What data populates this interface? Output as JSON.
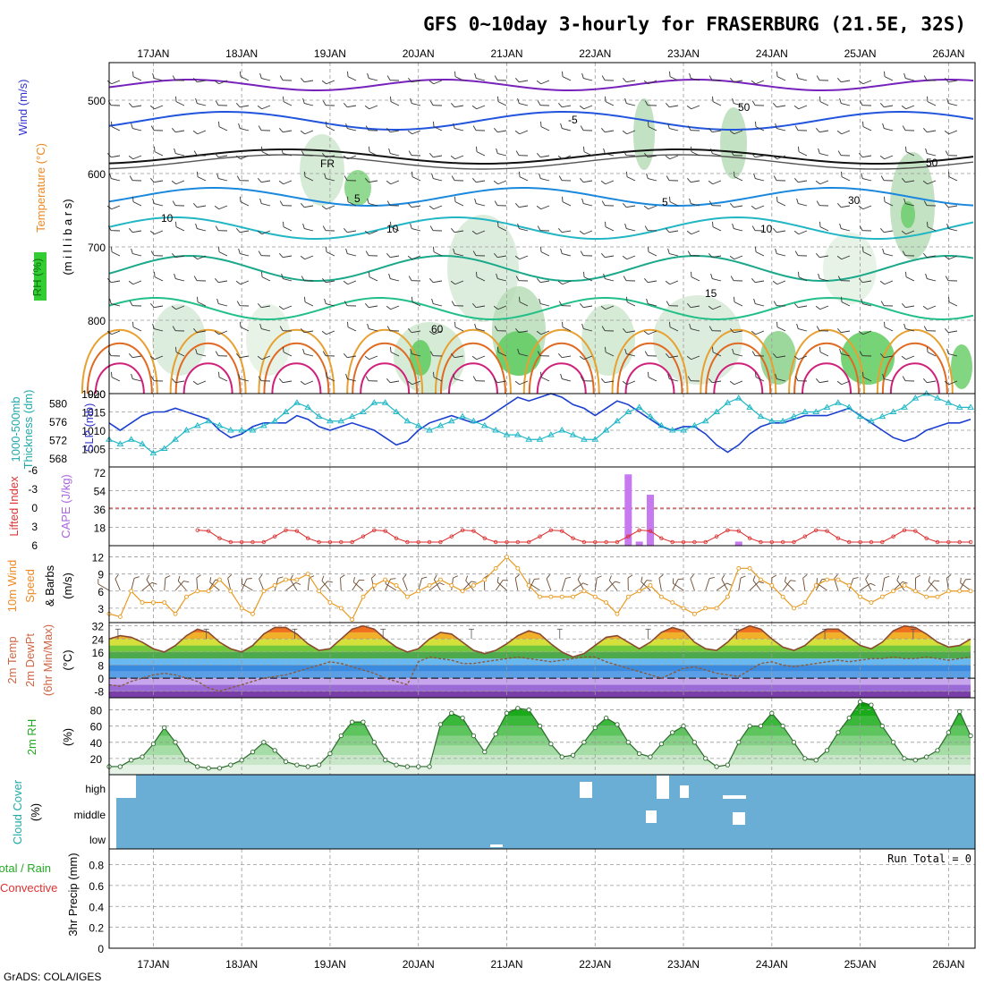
{
  "title": "GFS 0~10day 3-hourly for FRASERBURG (21.5E, 32S)",
  "footer": "GrADS: COLA/IGES",
  "run_total": "Run Total = 0",
  "x_axis": {
    "dates": [
      "17JAN",
      "18JAN",
      "19JAN",
      "20JAN",
      "21JAN",
      "22JAN",
      "23JAN",
      "24JAN",
      "25JAN",
      "26JAN"
    ],
    "start_day": 16.5,
    "end_day": 26.3
  },
  "panels": {
    "upper_air": {
      "labels": [
        "Wind (m/s)",
        "Temperature (°C)",
        "RH (%)",
        "(m i l l i b a r s)"
      ],
      "pressure_ticks": [
        "500",
        "600",
        "700",
        "800",
        "900"
      ],
      "contour_labels": [
        "-5",
        "FR",
        "5",
        "10",
        "15",
        "10",
        "10",
        "5",
        "50",
        "50",
        "30",
        "60"
      ]
    },
    "slp": {
      "labels": [
        "1000-500mb",
        "Thickness (dm)",
        "SLP (mb)"
      ],
      "thickness_ticks": [
        "580",
        "576",
        "572",
        "568"
      ],
      "slp_ticks": [
        "1020",
        "1015",
        "1010",
        "1005"
      ]
    },
    "cape": {
      "labels": [
        "Lifted Index",
        "CAPE (J/kg)"
      ],
      "li_ticks": [
        "-6",
        "-3",
        "0",
        "3",
        "6"
      ],
      "cape_ticks": [
        "72",
        "54",
        "36",
        "18"
      ]
    },
    "wind10m": {
      "labels": [
        "10m Wind",
        "Speed",
        "(m/s)",
        "& Barbs"
      ],
      "ticks": [
        "12",
        "9",
        "6",
        "3"
      ]
    },
    "temp2m": {
      "labels": [
        "2m Temp",
        "2m DewPt",
        "(6hr Min/Max)",
        "(°C)"
      ],
      "ticks": [
        "32",
        "24",
        "16",
        "8",
        "0",
        "-8"
      ]
    },
    "rh2m": {
      "labels": [
        "2m RH",
        "(%)"
      ],
      "ticks": [
        "80",
        "60",
        "40",
        "20"
      ]
    },
    "cloud": {
      "labels": [
        "Cloud Cover",
        "(%)"
      ],
      "levels": [
        "high",
        "middle",
        "low"
      ]
    },
    "precip": {
      "labels": [
        "Total / Rain",
        "Convective",
        "3hr Precip (mm)"
      ],
      "ticks": [
        "0.8",
        "0.6",
        "0.4",
        "0.2",
        "0"
      ]
    }
  },
  "colors": {
    "slp": "#1a3fd0",
    "thickness": "#22b8c8",
    "li": "#dd2a2a",
    "cape": "#c77af0",
    "wind_speed": "#e89a20",
    "barb": "#6b4a30",
    "temp": "#8a4a30",
    "rh": "#2aa42a",
    "cloud": "#6aaed6",
    "label_green": "#22aa22",
    "label_red": "#dd3333",
    "label_purple": "#3333cc",
    "label_cyan": "#22aaaa",
    "label_orange": "#ee8822",
    "label_brown": "#cc6644",
    "label_violet": "#aa66dd"
  },
  "chart_data": [
    {
      "type": "line",
      "name": "SLP (mb)",
      "x_unit": "day of January",
      "x": [
        16.5,
        16.625,
        16.75,
        16.875,
        17.0,
        17.125,
        17.25,
        17.375,
        17.5,
        17.625,
        17.75,
        17.875,
        18.0,
        18.125,
        18.25,
        18.375,
        18.5,
        18.625,
        18.75,
        18.875,
        19.0,
        19.125,
        19.25,
        19.375,
        19.5,
        19.625,
        19.75,
        19.875,
        20.0,
        20.125,
        20.25,
        20.375,
        20.5,
        20.625,
        20.75,
        20.875,
        21.0,
        21.125,
        21.25,
        21.375,
        21.5,
        21.625,
        21.75,
        21.875,
        22.0,
        22.125,
        22.25,
        22.375,
        22.5,
        22.625,
        22.75,
        22.875,
        23.0,
        23.125,
        23.25,
        23.375,
        23.5,
        23.625,
        23.75,
        23.875,
        24.0,
        24.125,
        24.25,
        24.375,
        24.5,
        24.625,
        24.75,
        24.875,
        25.0,
        25.125,
        25.25,
        25.375,
        25.5,
        25.625,
        25.75,
        25.875,
        26.0,
        26.125,
        26.25
      ],
      "series": [
        {
          "name": "SLP",
          "values": [
            1012,
            1010,
            1012,
            1014,
            1015,
            1015,
            1016,
            1015,
            1014,
            1013,
            1010,
            1008,
            1009,
            1011,
            1012,
            1012,
            1012,
            1014,
            1013,
            1011,
            1010,
            1011,
            1012,
            1011,
            1010,
            1008,
            1006,
            1007,
            1010,
            1012,
            1013,
            1014,
            1013,
            1012,
            1013,
            1015,
            1017,
            1019,
            1018,
            1019,
            1020,
            1019,
            1017,
            1016,
            1014,
            1016,
            1018,
            1017,
            1015,
            1013,
            1011,
            1010,
            1011,
            1011,
            1009,
            1006,
            1004,
            1006,
            1009,
            1011,
            1012,
            1012,
            1013,
            1014,
            1014,
            1014,
            1015,
            1016,
            1014,
            1012,
            1010,
            1008,
            1007,
            1008,
            1010,
            1011,
            1012,
            1012,
            1013
          ]
        }
      ]
    },
    {
      "type": "line",
      "name": "1000-500mb Thickness (dm)",
      "x_unit": "day of January",
      "x": [
        16.5,
        16.625,
        16.75,
        16.875,
        17.0,
        17.125,
        17.25,
        17.375,
        17.5,
        17.625,
        17.75,
        17.875,
        18.0,
        18.125,
        18.25,
        18.375,
        18.5,
        18.625,
        18.75,
        18.875,
        19.0,
        19.125,
        19.25,
        19.375,
        19.5,
        19.625,
        19.75,
        19.875,
        20.0,
        20.125,
        20.25,
        20.375,
        20.5,
        20.625,
        20.75,
        20.875,
        21.0,
        21.125,
        21.25,
        21.375,
        21.5,
        21.625,
        21.75,
        21.875,
        22.0,
        22.125,
        22.25,
        22.375,
        22.5,
        22.625,
        22.75,
        22.875,
        23.0,
        23.125,
        23.25,
        23.375,
        23.5,
        23.625,
        23.75,
        23.875,
        24.0,
        24.125,
        24.25,
        24.375,
        24.5,
        24.625,
        24.75,
        24.875,
        25.0,
        25.125,
        25.25,
        25.375,
        25.5,
        25.625,
        25.75,
        25.875,
        26.0,
        26.125,
        26.25
      ],
      "series": [
        {
          "name": "Thickness",
          "values": [
            572,
            571,
            572,
            571,
            569,
            570,
            572,
            574,
            575,
            576,
            575,
            574,
            574,
            574,
            575,
            576,
            578,
            580,
            579,
            577,
            576,
            576,
            577,
            578,
            580,
            580,
            578,
            576,
            575,
            574,
            575,
            576,
            577,
            576,
            575,
            574,
            573,
            573,
            572,
            572,
            573,
            574,
            573,
            572,
            572,
            574,
            576,
            578,
            579,
            577,
            575,
            574,
            574,
            575,
            576,
            578,
            580,
            581,
            579,
            577,
            576,
            576,
            577,
            578,
            578,
            579,
            580,
            579,
            577,
            576,
            577,
            578,
            579,
            581,
            582,
            581,
            580,
            579,
            579
          ]
        }
      ]
    },
    {
      "type": "bar",
      "name": "CAPE (J/kg)",
      "x_unit": "day of January",
      "x": [
        22.375,
        22.5,
        22.625,
        23.625
      ],
      "series": [
        {
          "name": "CAPE",
          "values": [
            70,
            4,
            50,
            4
          ]
        }
      ],
      "ylim": [
        0,
        72
      ]
    },
    {
      "type": "line",
      "name": "10m Wind Speed (m/s)",
      "x_unit": "day of January",
      "x": [
        16.5,
        16.625,
        16.75,
        16.875,
        17.0,
        17.125,
        17.25,
        17.375,
        17.5,
        17.625,
        17.75,
        17.875,
        18.0,
        18.125,
        18.25,
        18.375,
        18.5,
        18.625,
        18.75,
        18.875,
        19.0,
        19.125,
        19.25,
        19.375,
        19.5,
        19.625,
        19.75,
        19.875,
        20.0,
        20.125,
        20.25,
        20.375,
        20.5,
        20.625,
        20.75,
        20.875,
        21.0,
        21.125,
        21.25,
        21.375,
        21.5,
        21.625,
        21.75,
        21.875,
        22.0,
        22.125,
        22.25,
        22.375,
        22.5,
        22.625,
        22.75,
        22.875,
        23.0,
        23.125,
        23.25,
        23.375,
        23.5,
        23.625,
        23.75,
        23.875,
        24.0,
        24.125,
        24.25,
        24.375,
        24.5,
        24.625,
        24.75,
        24.875,
        25.0,
        25.125,
        25.25,
        25.375,
        25.5,
        25.625,
        25.75,
        25.875,
        26.0,
        26.125,
        26.25
      ],
      "series": [
        {
          "name": "Speed",
          "values": [
            2,
            1.5,
            6,
            4,
            4,
            4,
            2,
            5,
            6,
            6,
            8,
            6,
            3,
            2,
            6,
            7,
            8,
            8,
            9,
            6,
            4,
            3,
            1,
            5,
            7,
            8,
            7,
            5,
            6,
            7,
            8,
            7,
            6,
            7,
            8,
            10,
            12,
            10,
            7,
            5,
            5,
            5,
            5,
            6,
            5,
            4,
            2,
            5,
            6,
            7,
            5,
            4,
            3,
            2,
            3,
            3,
            5,
            10,
            10,
            8,
            7,
            5,
            3,
            4,
            7,
            8,
            8,
            7,
            5,
            4,
            5,
            6,
            7,
            6,
            5,
            5,
            6,
            6,
            6
          ]
        }
      ]
    },
    {
      "type": "line",
      "name": "2m Temp / DewPt (°C)",
      "x_unit": "day of January",
      "x": [
        16.5,
        16.625,
        16.75,
        16.875,
        17.0,
        17.125,
        17.25,
        17.375,
        17.5,
        17.625,
        17.75,
        17.875,
        18.0,
        18.125,
        18.25,
        18.375,
        18.5,
        18.625,
        18.75,
        18.875,
        19.0,
        19.125,
        19.25,
        19.375,
        19.5,
        19.625,
        19.75,
        19.875,
        20.0,
        20.125,
        20.25,
        20.375,
        20.5,
        20.625,
        20.75,
        20.875,
        21.0,
        21.125,
        21.25,
        21.375,
        21.5,
        21.625,
        21.75,
        21.875,
        22.0,
        22.125,
        22.25,
        22.375,
        22.5,
        22.625,
        22.75,
        22.875,
        23.0,
        23.125,
        23.25,
        23.375,
        23.5,
        23.625,
        23.75,
        23.875,
        24.0,
        24.125,
        24.25,
        24.375,
        24.5,
        24.625,
        24.75,
        24.875,
        25.0,
        25.125,
        25.25,
        25.375,
        25.5,
        25.625,
        25.75,
        25.875,
        26.0,
        26.125,
        26.25
      ],
      "series": [
        {
          "name": "Temp",
          "values": [
            24,
            26,
            25,
            22,
            18,
            16,
            20,
            26,
            30,
            28,
            22,
            18,
            16,
            20,
            27,
            31,
            31,
            27,
            21,
            17,
            18,
            24,
            30,
            32,
            30,
            24,
            19,
            16,
            18,
            24,
            28,
            27,
            22,
            17,
            15,
            17,
            21,
            26,
            29,
            27,
            21,
            16,
            13,
            15,
            20,
            25,
            26,
            22,
            18,
            22,
            28,
            31,
            29,
            22,
            18,
            17,
            22,
            29,
            32,
            30,
            24,
            19,
            17,
            20,
            26,
            30,
            30,
            25,
            20,
            18,
            22,
            29,
            32,
            31,
            27,
            22,
            19,
            20,
            24
          ]
        },
        {
          "name": "DewPt",
          "values": [
            -4,
            -5,
            -2,
            0,
            2,
            3,
            2,
            0,
            -2,
            -6,
            -8,
            -6,
            -4,
            -2,
            0,
            1,
            2,
            4,
            6,
            8,
            10,
            9,
            7,
            5,
            3,
            0,
            -2,
            -4,
            10,
            13,
            12,
            11,
            9,
            9,
            10,
            11,
            12,
            13,
            12,
            11,
            10,
            11,
            12,
            13,
            13,
            10,
            8,
            6,
            4,
            2,
            0,
            3,
            6,
            7,
            5,
            3,
            2,
            1,
            5,
            9,
            10,
            8,
            7,
            8,
            9,
            10,
            11,
            10,
            11,
            12,
            12,
            13,
            12,
            12,
            13,
            12,
            11,
            12,
            13
          ]
        }
      ],
      "ylim": [
        -12,
        34
      ]
    },
    {
      "type": "line",
      "name": "2m RH (%)",
      "x_unit": "day of January",
      "x": [
        16.5,
        16.625,
        16.75,
        16.875,
        17.0,
        17.125,
        17.25,
        17.375,
        17.5,
        17.625,
        17.75,
        17.875,
        18.0,
        18.125,
        18.25,
        18.375,
        18.5,
        18.625,
        18.75,
        18.875,
        19.0,
        19.125,
        19.25,
        19.375,
        19.5,
        19.625,
        19.75,
        19.875,
        20.0,
        20.125,
        20.25,
        20.375,
        20.5,
        20.625,
        20.75,
        20.875,
        21.0,
        21.125,
        21.25,
        21.375,
        21.5,
        21.625,
        21.75,
        21.875,
        22.0,
        22.125,
        22.25,
        22.375,
        22.5,
        22.625,
        22.75,
        22.875,
        23.0,
        23.125,
        23.25,
        23.375,
        23.5,
        23.625,
        23.75,
        23.875,
        24.0,
        24.125,
        24.25,
        24.375,
        24.5,
        24.625,
        24.75,
        24.875,
        25.0,
        25.125,
        25.25,
        25.375,
        25.5,
        25.625,
        25.75,
        25.875,
        26.0,
        26.125,
        26.25
      ],
      "series": [
        {
          "name": "RH",
          "values": [
            10,
            10,
            18,
            22,
            38,
            58,
            40,
            18,
            10,
            8,
            8,
            12,
            18,
            28,
            40,
            30,
            16,
            12,
            10,
            12,
            26,
            48,
            65,
            65,
            40,
            18,
            12,
            10,
            10,
            10,
            62,
            76,
            70,
            48,
            28,
            50,
            76,
            82,
            80,
            60,
            38,
            22,
            24,
            40,
            58,
            70,
            62,
            40,
            26,
            22,
            38,
            52,
            60,
            40,
            20,
            10,
            12,
            40,
            60,
            60,
            76,
            60,
            40,
            20,
            18,
            30,
            52,
            70,
            90,
            86,
            60,
            40,
            20,
            18,
            22,
            30,
            52,
            78,
            48
          ]
        }
      ],
      "ylim": [
        0,
        95
      ]
    },
    {
      "type": "bar",
      "name": "3hr Precip (mm)",
      "x_unit": "day of January",
      "x": [],
      "series": [
        {
          "name": "Total / Rain",
          "values": []
        },
        {
          "name": "Convective",
          "values": []
        }
      ],
      "ylim": [
        0,
        0.95
      ]
    }
  ]
}
